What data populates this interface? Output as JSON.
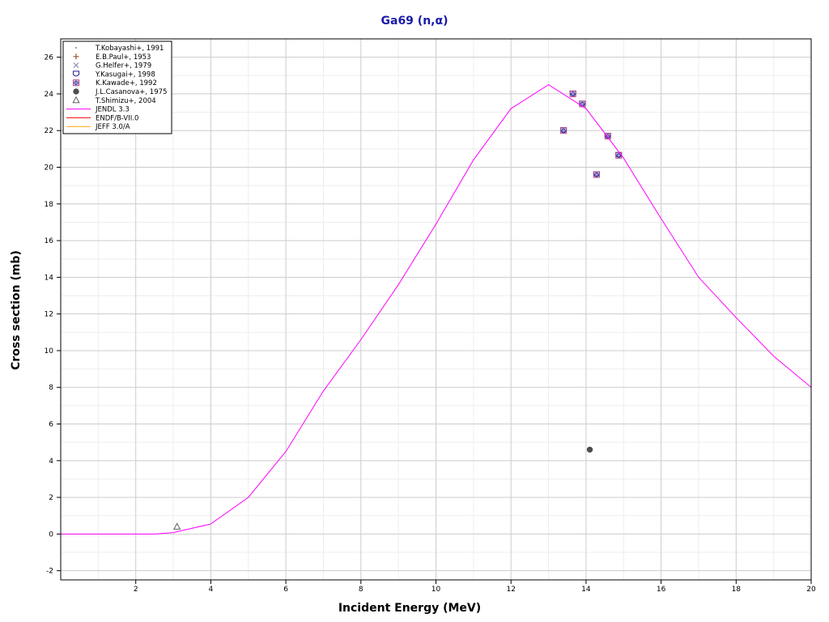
{
  "chart_data": {
    "type": "scatter",
    "title": "Ga69 (n,α)",
    "xlabel": "Incident Energy (MeV)",
    "ylabel": "Cross section (mb)",
    "xlim": [
      0,
      20
    ],
    "ylim": [
      -2.5,
      27
    ],
    "x_ticks": [
      2,
      4,
      6,
      8,
      10,
      12,
      14,
      16,
      18,
      20
    ],
    "x_tick_labels": [
      "2",
      "4",
      "6",
      "8",
      "10",
      "12",
      "14",
      "16",
      "18",
      "20"
    ],
    "y_ticks": [
      -2,
      0,
      2,
      4,
      6,
      8,
      10,
      12,
      14,
      16,
      18,
      20,
      22,
      24,
      26
    ],
    "y_tick_labels": [
      "-2",
      "0",
      "2",
      "4",
      "6",
      "8",
      "10",
      "12",
      "14",
      "16",
      "18",
      "20",
      "22",
      "24",
      "26"
    ],
    "grid": true,
    "legend_position": "top-left",
    "series": [
      {
        "name": "T.Kobayashi+, 1991",
        "kind": "marker",
        "marker": "dot",
        "color": "#a0a0a0",
        "points": []
      },
      {
        "name": "E.B.Paul+, 1953",
        "kind": "marker",
        "marker": "plus",
        "color": "#a0522d",
        "points": []
      },
      {
        "name": "G.Helfer+, 1979",
        "kind": "marker",
        "marker": "cross",
        "color": "#9090b0",
        "points": []
      },
      {
        "name": "Y.Kasugai+, 1998",
        "kind": "marker",
        "marker": "shield",
        "color": "#3030a0",
        "points": [
          [
            13.4,
            22.0
          ],
          [
            13.65,
            24.0
          ],
          [
            13.9,
            23.45
          ],
          [
            14.28,
            19.6
          ],
          [
            14.58,
            21.7
          ],
          [
            14.87,
            20.65
          ]
        ]
      },
      {
        "name": "K.Kawade+, 1992",
        "kind": "marker",
        "marker": "boxcircle",
        "color": "#b04080",
        "points": [
          [
            13.4,
            22.0
          ],
          [
            13.65,
            24.0
          ],
          [
            13.9,
            23.45
          ],
          [
            14.28,
            19.6
          ],
          [
            14.58,
            21.7
          ],
          [
            14.87,
            20.65
          ]
        ]
      },
      {
        "name": "J.L.Casanova+, 1975",
        "kind": "marker",
        "marker": "filledcircle",
        "color": "#505050",
        "points": [
          [
            14.1,
            4.6
          ]
        ]
      },
      {
        "name": "T.Shimizu+, 2004",
        "kind": "marker",
        "marker": "triangle",
        "color": "#606060",
        "points": [
          [
            3.1,
            0.4
          ]
        ]
      },
      {
        "name": "JENDL 3.3",
        "kind": "line",
        "color": "#ff00ff",
        "points": [
          [
            0,
            0
          ],
          [
            2.5,
            0
          ],
          [
            3,
            0.08
          ],
          [
            4,
            0.55
          ],
          [
            5,
            2.0
          ],
          [
            6,
            4.5
          ],
          [
            7,
            7.8
          ],
          [
            8,
            10.6
          ],
          [
            9,
            13.6
          ],
          [
            10,
            16.9
          ],
          [
            11,
            20.4
          ],
          [
            12,
            23.2
          ],
          [
            13,
            24.5
          ],
          [
            14,
            23.2
          ],
          [
            15,
            20.5
          ],
          [
            16,
            17.2
          ],
          [
            17,
            14.0
          ],
          [
            18,
            11.8
          ],
          [
            19,
            9.7
          ],
          [
            20,
            8.0
          ]
        ]
      },
      {
        "name": "ENDF/B-VII.0",
        "kind": "line",
        "color": "#ff0000",
        "points": []
      },
      {
        "name": "JEFF 3.0/A",
        "kind": "line",
        "color": "#ffa500",
        "points": []
      }
    ]
  }
}
